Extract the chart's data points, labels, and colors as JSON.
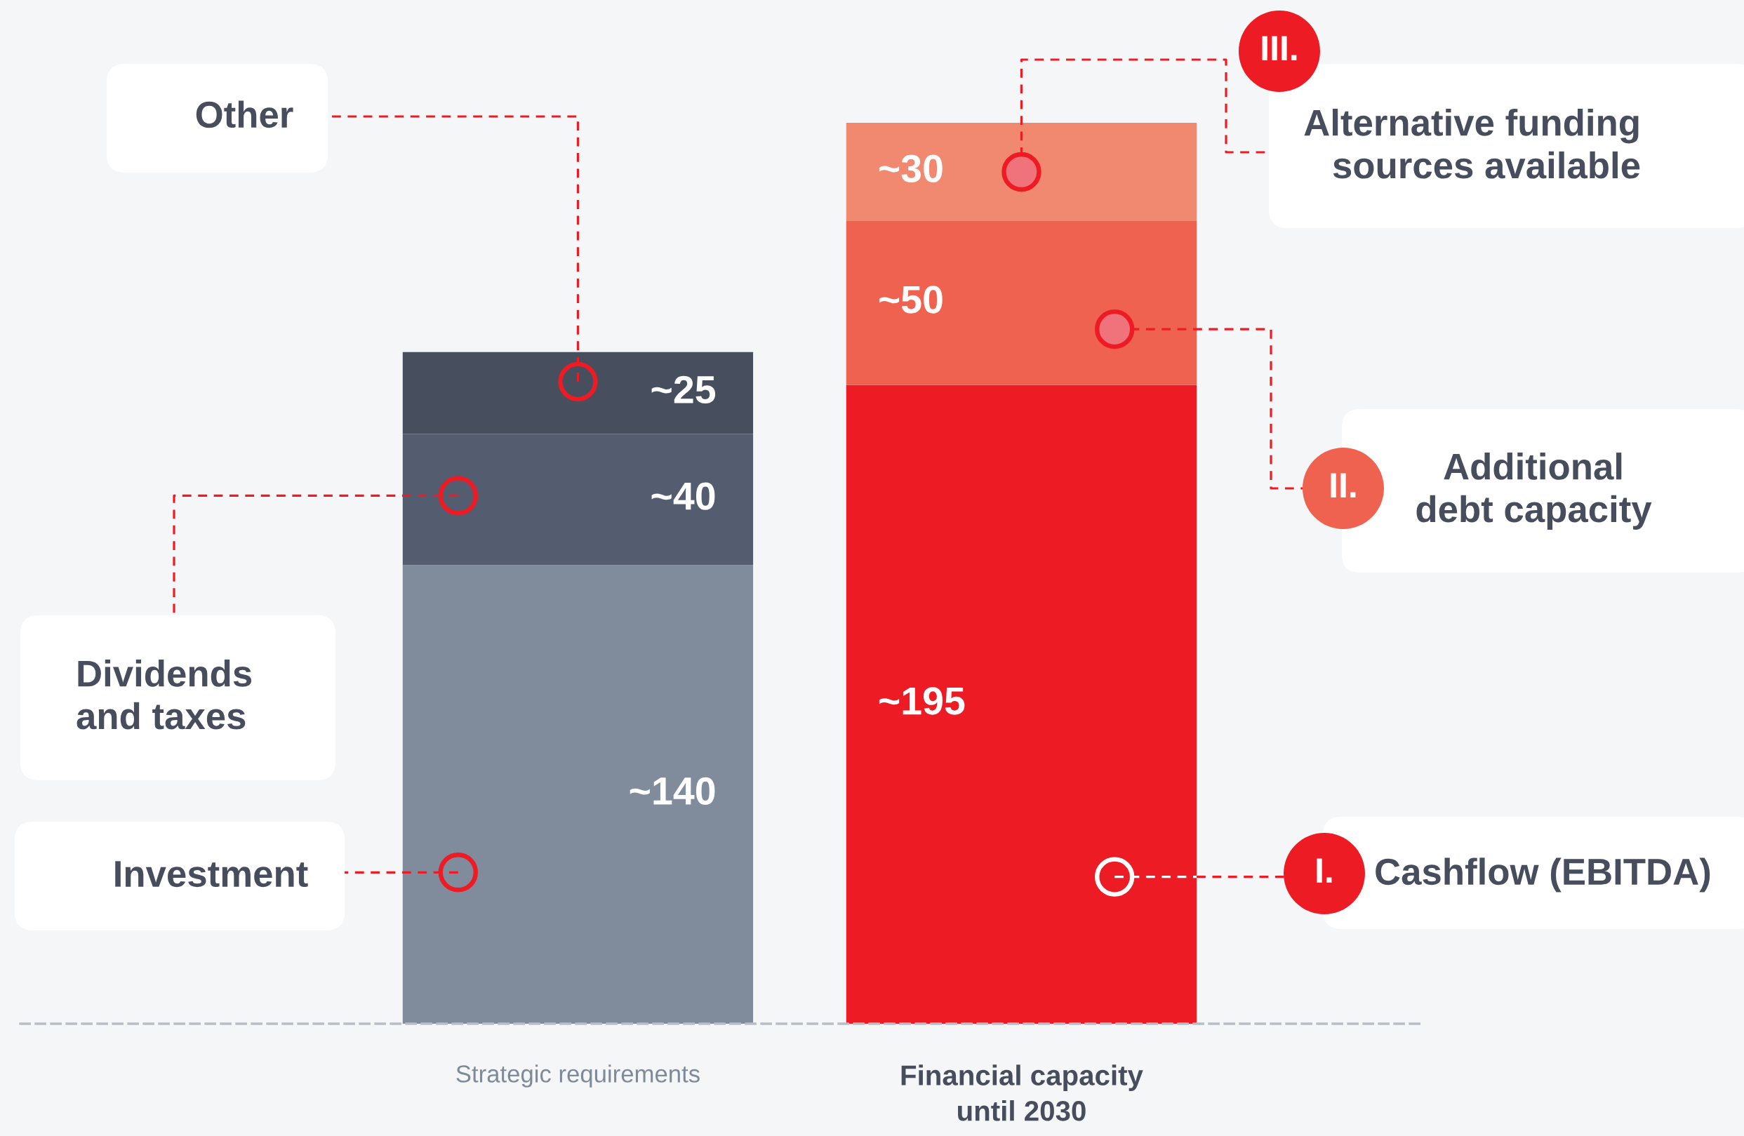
{
  "chart_data": {
    "type": "bar",
    "stacked": true,
    "legend": "right",
    "categories": [
      "Strategic requirements",
      "Financial capacity\nuntil 2030"
    ],
    "series": [
      {
        "name": "Investment",
        "color": "#808c9b",
        "values": [
          140,
          null
        ],
        "value_labels": [
          "~140",
          null
        ]
      },
      {
        "name": "Dividends\nand taxes",
        "color": "#545d6f",
        "values": [
          40,
          null
        ],
        "value_labels": [
          "~40",
          null
        ]
      },
      {
        "name": "Other",
        "color": "#474e5d",
        "values": [
          25,
          null
        ],
        "value_labels": [
          "~25",
          null
        ]
      },
      {
        "name": "Cashflow (EBITDA)",
        "color": "#ed1c24",
        "values": [
          null,
          195
        ],
        "value_labels": [
          null,
          "~195"
        ]
      },
      {
        "name": "Additional\ndebt capacity",
        "color": "#ef6250",
        "values": [
          null,
          50
        ],
        "value_labels": [
          null,
          "~50"
        ]
      },
      {
        "name": "Alternative funding\nsources available",
        "color": "#f0896f",
        "values": [
          null,
          30
        ],
        "value_labels": [
          null,
          "~30"
        ]
      }
    ],
    "annotations": [
      "I.",
      "II.",
      "III."
    ]
  }
}
